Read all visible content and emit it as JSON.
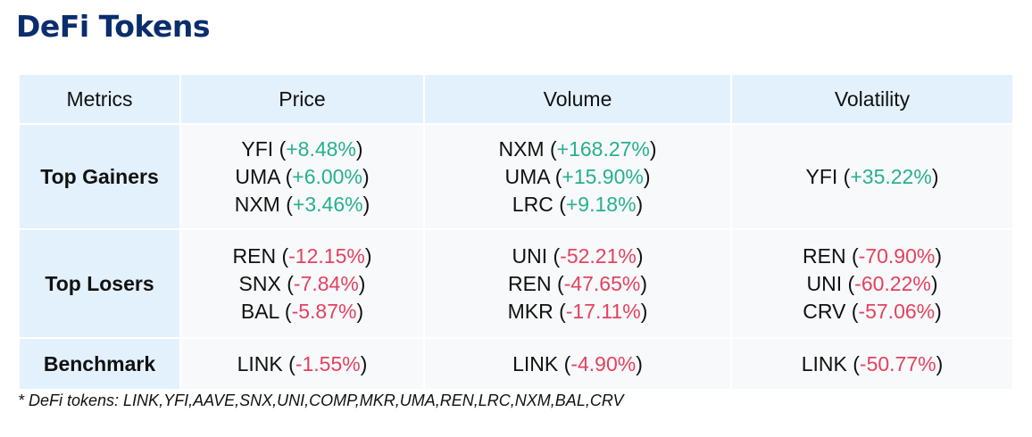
{
  "title": "DeFi Tokens",
  "colors": {
    "title": "#0a2d6e",
    "header_bg": "#e3f1fc",
    "positive": "#27b08f",
    "negative": "#e3425f"
  },
  "headers": [
    "Metrics",
    "Price",
    "Volume",
    "Volatility"
  ],
  "rows": [
    {
      "label": "Top Gainers",
      "price": [
        {
          "token": "YFI",
          "change": "+8.48%"
        },
        {
          "token": "UMA",
          "change": "+6.00%"
        },
        {
          "token": "NXM",
          "change": "+3.46%"
        }
      ],
      "volume": [
        {
          "token": "NXM",
          "change": "+168.27%"
        },
        {
          "token": "UMA",
          "change": "+15.90%"
        },
        {
          "token": "LRC",
          "change": "+9.18%"
        }
      ],
      "volatility": [
        {
          "token": "YFI",
          "change": "+35.22%"
        }
      ]
    },
    {
      "label": "Top Losers",
      "price": [
        {
          "token": "REN",
          "change": "-12.15%"
        },
        {
          "token": "SNX",
          "change": "-7.84%"
        },
        {
          "token": "BAL",
          "change": "-5.87%"
        }
      ],
      "volume": [
        {
          "token": "UNI",
          "change": "-52.21%"
        },
        {
          "token": "REN",
          "change": "-47.65%"
        },
        {
          "token": "MKR",
          "change": "-17.11%"
        }
      ],
      "volatility": [
        {
          "token": "REN",
          "change": "-70.90%"
        },
        {
          "token": "UNI",
          "change": "-60.22%"
        },
        {
          "token": "CRV",
          "change": "-57.06%"
        }
      ]
    },
    {
      "label": "Benchmark",
      "price": [
        {
          "token": "LINK",
          "change": "-1.55%"
        }
      ],
      "volume": [
        {
          "token": "LINK",
          "change": "-4.90%"
        }
      ],
      "volatility": [
        {
          "token": "LINK",
          "change": "-50.77%"
        }
      ]
    }
  ],
  "footnote": "* DeFi tokens: LINK,YFI,AAVE,SNX,UNI,COMP,MKR,UMA,REN,LRC,NXM,BAL,CRV"
}
